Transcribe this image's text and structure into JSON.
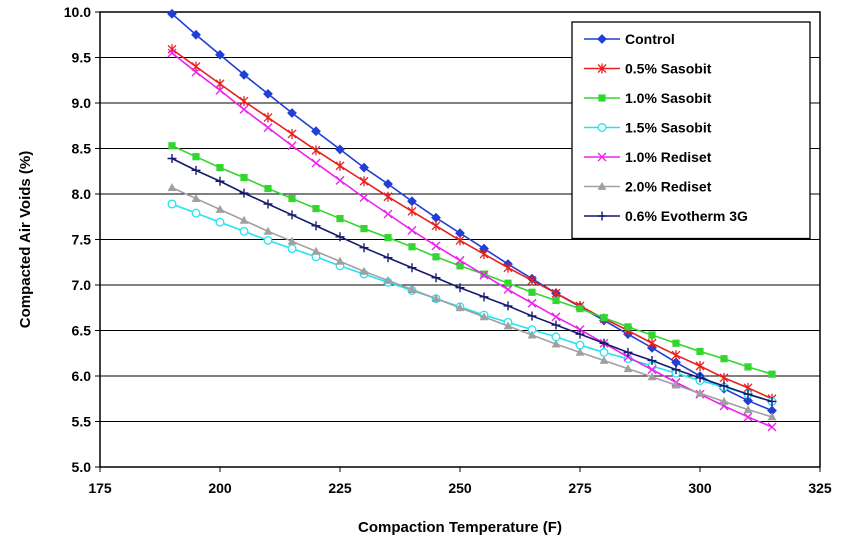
{
  "chart_data": {
    "type": "line",
    "title": "",
    "xlabel": "Compaction Temperature (F)",
    "ylabel": "Compacted Air Voids (%)",
    "xlim": [
      175,
      325
    ],
    "ylim": [
      5.0,
      10.0
    ],
    "xticks": [
      "175",
      "200",
      "225",
      "250",
      "275",
      "300",
      "325"
    ],
    "yticks": [
      "5.0",
      "5.5",
      "6.0",
      "6.5",
      "7.0",
      "7.5",
      "8.0",
      "8.5",
      "9.0",
      "9.5",
      "10.0"
    ],
    "grid": "horizontal",
    "legend_position": "top-right",
    "x": [
      190,
      195,
      200,
      205,
      210,
      215,
      220,
      225,
      230,
      235,
      240,
      245,
      250,
      255,
      260,
      265,
      270,
      275,
      280,
      285,
      290,
      295,
      300,
      305,
      310,
      315
    ],
    "series": [
      {
        "name": "Control",
        "color": "#1f3fd6",
        "marker": "diamond",
        "values": [
          9.98,
          9.75,
          9.53,
          9.31,
          9.1,
          8.89,
          8.69,
          8.49,
          8.29,
          8.11,
          7.92,
          7.74,
          7.57,
          7.4,
          7.23,
          7.07,
          6.91,
          6.76,
          6.61,
          6.46,
          6.31,
          6.15,
          6.0,
          5.86,
          5.73,
          5.62
        ]
      },
      {
        "name": "0.5% Sasobit",
        "color": "#e8201e",
        "marker": "asterisk",
        "values": [
          9.59,
          9.4,
          9.21,
          9.02,
          8.84,
          8.66,
          8.48,
          8.31,
          8.14,
          7.97,
          7.81,
          7.65,
          7.49,
          7.34,
          7.19,
          7.05,
          6.91,
          6.77,
          6.63,
          6.5,
          6.36,
          6.23,
          6.11,
          5.98,
          5.87,
          5.75
        ]
      },
      {
        "name": "1.0% Sasobit",
        "color": "#33d62e",
        "marker": "square",
        "values": [
          8.53,
          8.41,
          8.29,
          8.18,
          8.06,
          7.95,
          7.84,
          7.73,
          7.62,
          7.52,
          7.42,
          7.31,
          7.21,
          7.12,
          7.02,
          6.92,
          6.83,
          6.74,
          6.64,
          6.54,
          6.45,
          6.36,
          6.27,
          6.19,
          6.1,
          6.02
        ]
      },
      {
        "name": "1.5% Sasobit",
        "color": "#22e3f0",
        "marker": "circle",
        "values": [
          7.89,
          7.79,
          7.69,
          7.59,
          7.49,
          7.4,
          7.31,
          7.21,
          7.12,
          7.03,
          6.94,
          6.85,
          6.76,
          6.67,
          6.59,
          6.51,
          6.43,
          6.34,
          6.26,
          6.19,
          6.11,
          6.03,
          5.95,
          5.88,
          5.8,
          5.72
        ]
      },
      {
        "name": "1.0% Rediset",
        "color": "#ee22ee",
        "marker": "x",
        "values": [
          9.55,
          9.34,
          9.14,
          8.93,
          8.73,
          8.53,
          8.34,
          8.15,
          7.96,
          7.78,
          7.6,
          7.43,
          7.27,
          7.11,
          6.95,
          6.8,
          6.65,
          6.51,
          6.36,
          6.21,
          6.07,
          5.93,
          5.8,
          5.67,
          5.55,
          5.44
        ]
      },
      {
        "name": "2.0% Rediset",
        "color": "#a0a0a0",
        "marker": "triangle",
        "values": [
          8.07,
          7.95,
          7.83,
          7.71,
          7.59,
          7.48,
          7.37,
          7.26,
          7.15,
          7.05,
          6.95,
          6.85,
          6.75,
          6.65,
          6.55,
          6.45,
          6.35,
          6.26,
          6.17,
          6.08,
          5.99,
          5.9,
          5.81,
          5.72,
          5.63,
          5.55
        ]
      },
      {
        "name": "0.6% Evotherm 3G",
        "color": "#151a6e",
        "marker": "plus",
        "values": [
          8.39,
          8.26,
          8.14,
          8.01,
          7.89,
          7.77,
          7.65,
          7.53,
          7.41,
          7.3,
          7.19,
          7.08,
          6.97,
          6.87,
          6.77,
          6.66,
          6.56,
          6.46,
          6.36,
          6.26,
          6.17,
          6.07,
          5.98,
          5.89,
          5.8,
          5.72
        ]
      }
    ]
  }
}
